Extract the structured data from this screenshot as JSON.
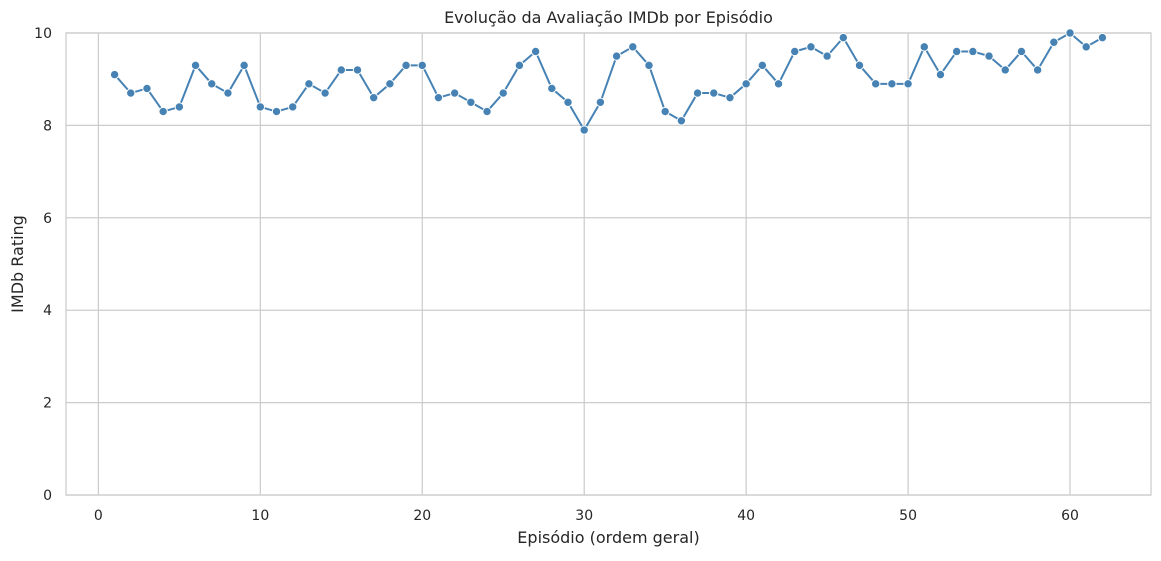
{
  "chart_data": {
    "type": "line",
    "title": "Evolução da Avaliação IMDb por Episódio",
    "xlabel": "Episódio (ordem geral)",
    "ylabel": "IMDb Rating",
    "xlim": [
      -2,
      65
    ],
    "ylim": [
      0,
      10
    ],
    "xticks": [
      0,
      10,
      20,
      30,
      40,
      50,
      60
    ],
    "yticks": [
      0,
      2,
      4,
      6,
      8,
      10
    ],
    "grid": true,
    "marker": "circle",
    "line_color": "#4682b4",
    "grid_color": "#cccccc",
    "series": [
      {
        "x": [
          1,
          2,
          3,
          4,
          5,
          6,
          7,
          8,
          9,
          10,
          11,
          12,
          13,
          14,
          15,
          16,
          17,
          18,
          19,
          20,
          21,
          22,
          23,
          24,
          25,
          26,
          27,
          28,
          29,
          30,
          31,
          32,
          33,
          34,
          35,
          36,
          37,
          38,
          39,
          40,
          41,
          42,
          43,
          44,
          45,
          46,
          47,
          48,
          49,
          50,
          51,
          52,
          53,
          54,
          55,
          56,
          57,
          58,
          59,
          60,
          61,
          62
        ],
        "y": [
          9.1,
          8.7,
          8.8,
          8.3,
          8.4,
          9.3,
          8.9,
          8.7,
          9.3,
          8.4,
          8.3,
          8.4,
          8.9,
          8.7,
          9.2,
          9.2,
          8.6,
          8.9,
          9.3,
          9.3,
          8.6,
          8.7,
          8.5,
          8.3,
          8.7,
          9.3,
          9.6,
          8.8,
          8.5,
          7.9,
          8.5,
          9.5,
          9.7,
          9.3,
          8.3,
          8.1,
          8.7,
          8.7,
          8.6,
          8.9,
          9.3,
          8.9,
          9.6,
          9.7,
          9.5,
          9.9,
          9.3,
          8.9,
          8.9,
          8.9,
          9.7,
          9.1,
          9.6,
          9.6,
          9.5,
          9.2,
          9.6,
          9.2,
          9.8,
          10.0,
          9.7,
          9.9
        ]
      }
    ]
  }
}
